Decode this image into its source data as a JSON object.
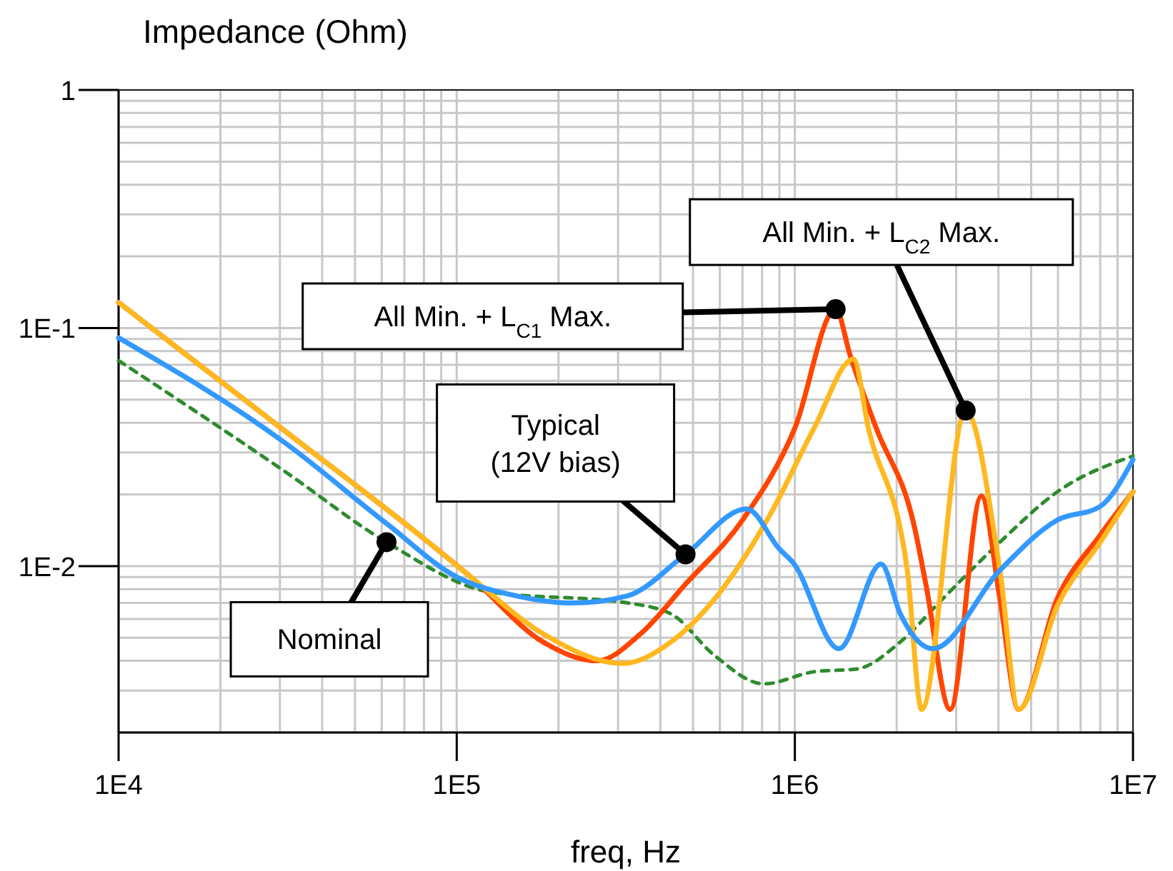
{
  "chart_data": {
    "type": "line",
    "ylabel": "Impedance (Ohm)",
    "xlabel": "freq, Hz",
    "log": "xy",
    "grid": true,
    "xlim": [
      10000,
      10000000
    ],
    "ylim": [
      0.002,
      1
    ],
    "xticks": [
      {
        "value": 10000,
        "label": "1E4"
      },
      {
        "value": 20000,
        "label": null
      },
      {
        "value": 30000,
        "label": null
      },
      {
        "value": 40000,
        "label": null
      },
      {
        "value": 50000,
        "label": null
      },
      {
        "value": 60000,
        "label": null
      },
      {
        "value": 70000,
        "label": null
      },
      {
        "value": 80000,
        "label": null
      },
      {
        "value": 90000,
        "label": null
      },
      {
        "value": 100000,
        "label": "1E5"
      },
      {
        "value": 200000,
        "label": null
      },
      {
        "value": 300000,
        "label": null
      },
      {
        "value": 400000,
        "label": null
      },
      {
        "value": 500000,
        "label": null
      },
      {
        "value": 600000,
        "label": null
      },
      {
        "value": 700000,
        "label": null
      },
      {
        "value": 800000,
        "label": null
      },
      {
        "value": 900000,
        "label": null
      },
      {
        "value": 1000000,
        "label": "1E6"
      },
      {
        "value": 2000000,
        "label": null
      },
      {
        "value": 3000000,
        "label": null
      },
      {
        "value": 4000000,
        "label": null
      },
      {
        "value": 5000000,
        "label": null
      },
      {
        "value": 6000000,
        "label": null
      },
      {
        "value": 7000000,
        "label": null
      },
      {
        "value": 8000000,
        "label": null
      },
      {
        "value": 9000000,
        "label": null
      },
      {
        "value": 10000000,
        "label": "1E7"
      }
    ],
    "yticks": [
      {
        "value": 0.002,
        "label": null
      },
      {
        "value": 0.003,
        "label": null
      },
      {
        "value": 0.004,
        "label": null
      },
      {
        "value": 0.005,
        "label": null
      },
      {
        "value": 0.006,
        "label": null
      },
      {
        "value": 0.007,
        "label": null
      },
      {
        "value": 0.008,
        "label": null
      },
      {
        "value": 0.009,
        "label": null
      },
      {
        "value": 0.01,
        "label": "1E-2"
      },
      {
        "value": 0.02,
        "label": null
      },
      {
        "value": 0.03,
        "label": null
      },
      {
        "value": 0.04,
        "label": null
      },
      {
        "value": 0.05,
        "label": null
      },
      {
        "value": 0.06,
        "label": null
      },
      {
        "value": 0.07,
        "label": null
      },
      {
        "value": 0.08,
        "label": null
      },
      {
        "value": 0.09,
        "label": null
      },
      {
        "value": 0.1,
        "label": "1E-1"
      },
      {
        "value": 0.2,
        "label": null
      },
      {
        "value": 0.3,
        "label": null
      },
      {
        "value": 0.4,
        "label": null
      },
      {
        "value": 0.5,
        "label": null
      },
      {
        "value": 0.6,
        "label": null
      },
      {
        "value": 0.7,
        "label": null
      },
      {
        "value": 0.8,
        "label": null
      },
      {
        "value": 0.9,
        "label": null
      },
      {
        "value": 1,
        "label": "1"
      }
    ],
    "series": [
      {
        "color": "#2e8b2e",
        "line_style": "dashed",
        "x": [
          10000,
          31000,
          62000,
          125000,
          320000,
          430000,
          580000,
          810000,
          1140000,
          1530000,
          2050000,
          2740000,
          4040000,
          5970000,
          10000000
        ],
        "values": [
          0.073,
          0.025,
          0.0126,
          0.0078,
          0.007,
          0.0063,
          0.0042,
          0.0032,
          0.0036,
          0.0037,
          0.0048,
          0.0073,
          0.0126,
          0.0205,
          0.029
        ]
      },
      {
        "color": "#ff4500",
        "line_style": "solid",
        "x": [
          10000,
          31000,
          83000,
          110000,
          180000,
          260000,
          350000,
          475000,
          700000,
          1000000,
          1320000,
          1460000,
          1740000,
          2260000,
          2440000,
          2880000,
          3560000,
          4040000,
          4590000,
          5970000,
          8000000,
          10000000
        ],
        "values": [
          0.128,
          0.037,
          0.0125,
          0.009,
          0.0048,
          0.004,
          0.0052,
          0.0084,
          0.0156,
          0.038,
          0.12,
          0.076,
          0.038,
          0.0145,
          0.0084,
          0.0025,
          0.0197,
          0.0073,
          0.0025,
          0.0073,
          0.0135,
          0.0205
        ]
      },
      {
        "color": "#ffb820",
        "line_style": "solid",
        "x": [
          10000,
          31000,
          83000,
          110000,
          180000,
          310000,
          430000,
          580000,
          850000,
          1140000,
          1490000,
          1650000,
          2150000,
          2370000,
          3200000,
          4040000,
          4590000,
          5970000,
          8000000,
          10000000
        ],
        "values": [
          0.128,
          0.037,
          0.0125,
          0.009,
          0.0052,
          0.0039,
          0.0048,
          0.0073,
          0.0167,
          0.038,
          0.074,
          0.038,
          0.0096,
          0.0025,
          0.045,
          0.0096,
          0.0025,
          0.0068,
          0.0126,
          0.0205
        ]
      },
      {
        "color": "#3399ff",
        "line_style": "solid",
        "x": [
          10000,
          31000,
          62000,
          100000,
          150000,
          220000,
          320000,
          475000,
          720000,
          900000,
          990000,
          1350000,
          1800000,
          2050000,
          2560000,
          4040000,
          5970000,
          8000000,
          10000000
        ],
        "values": [
          0.091,
          0.033,
          0.0151,
          0.009,
          0.0075,
          0.007,
          0.0075,
          0.0112,
          0.0174,
          0.0118,
          0.0103,
          0.0045,
          0.0102,
          0.0063,
          0.0045,
          0.0096,
          0.0156,
          0.0178,
          0.028
        ]
      }
    ],
    "annotations": [
      {
        "text": "All Min. + L$_{C1}$ Max.",
        "x": 1320000,
        "y": 0.12
      },
      {
        "text": "All Min. + L$_{C2}$ Max.",
        "x": 3200000,
        "y": 0.045
      },
      {
        "text": "Typical\n(12V bias)",
        "x": 475000,
        "y": 0.0112
      },
      {
        "text": "Nominal",
        "x": 62000,
        "y": 0.0126
      }
    ]
  }
}
